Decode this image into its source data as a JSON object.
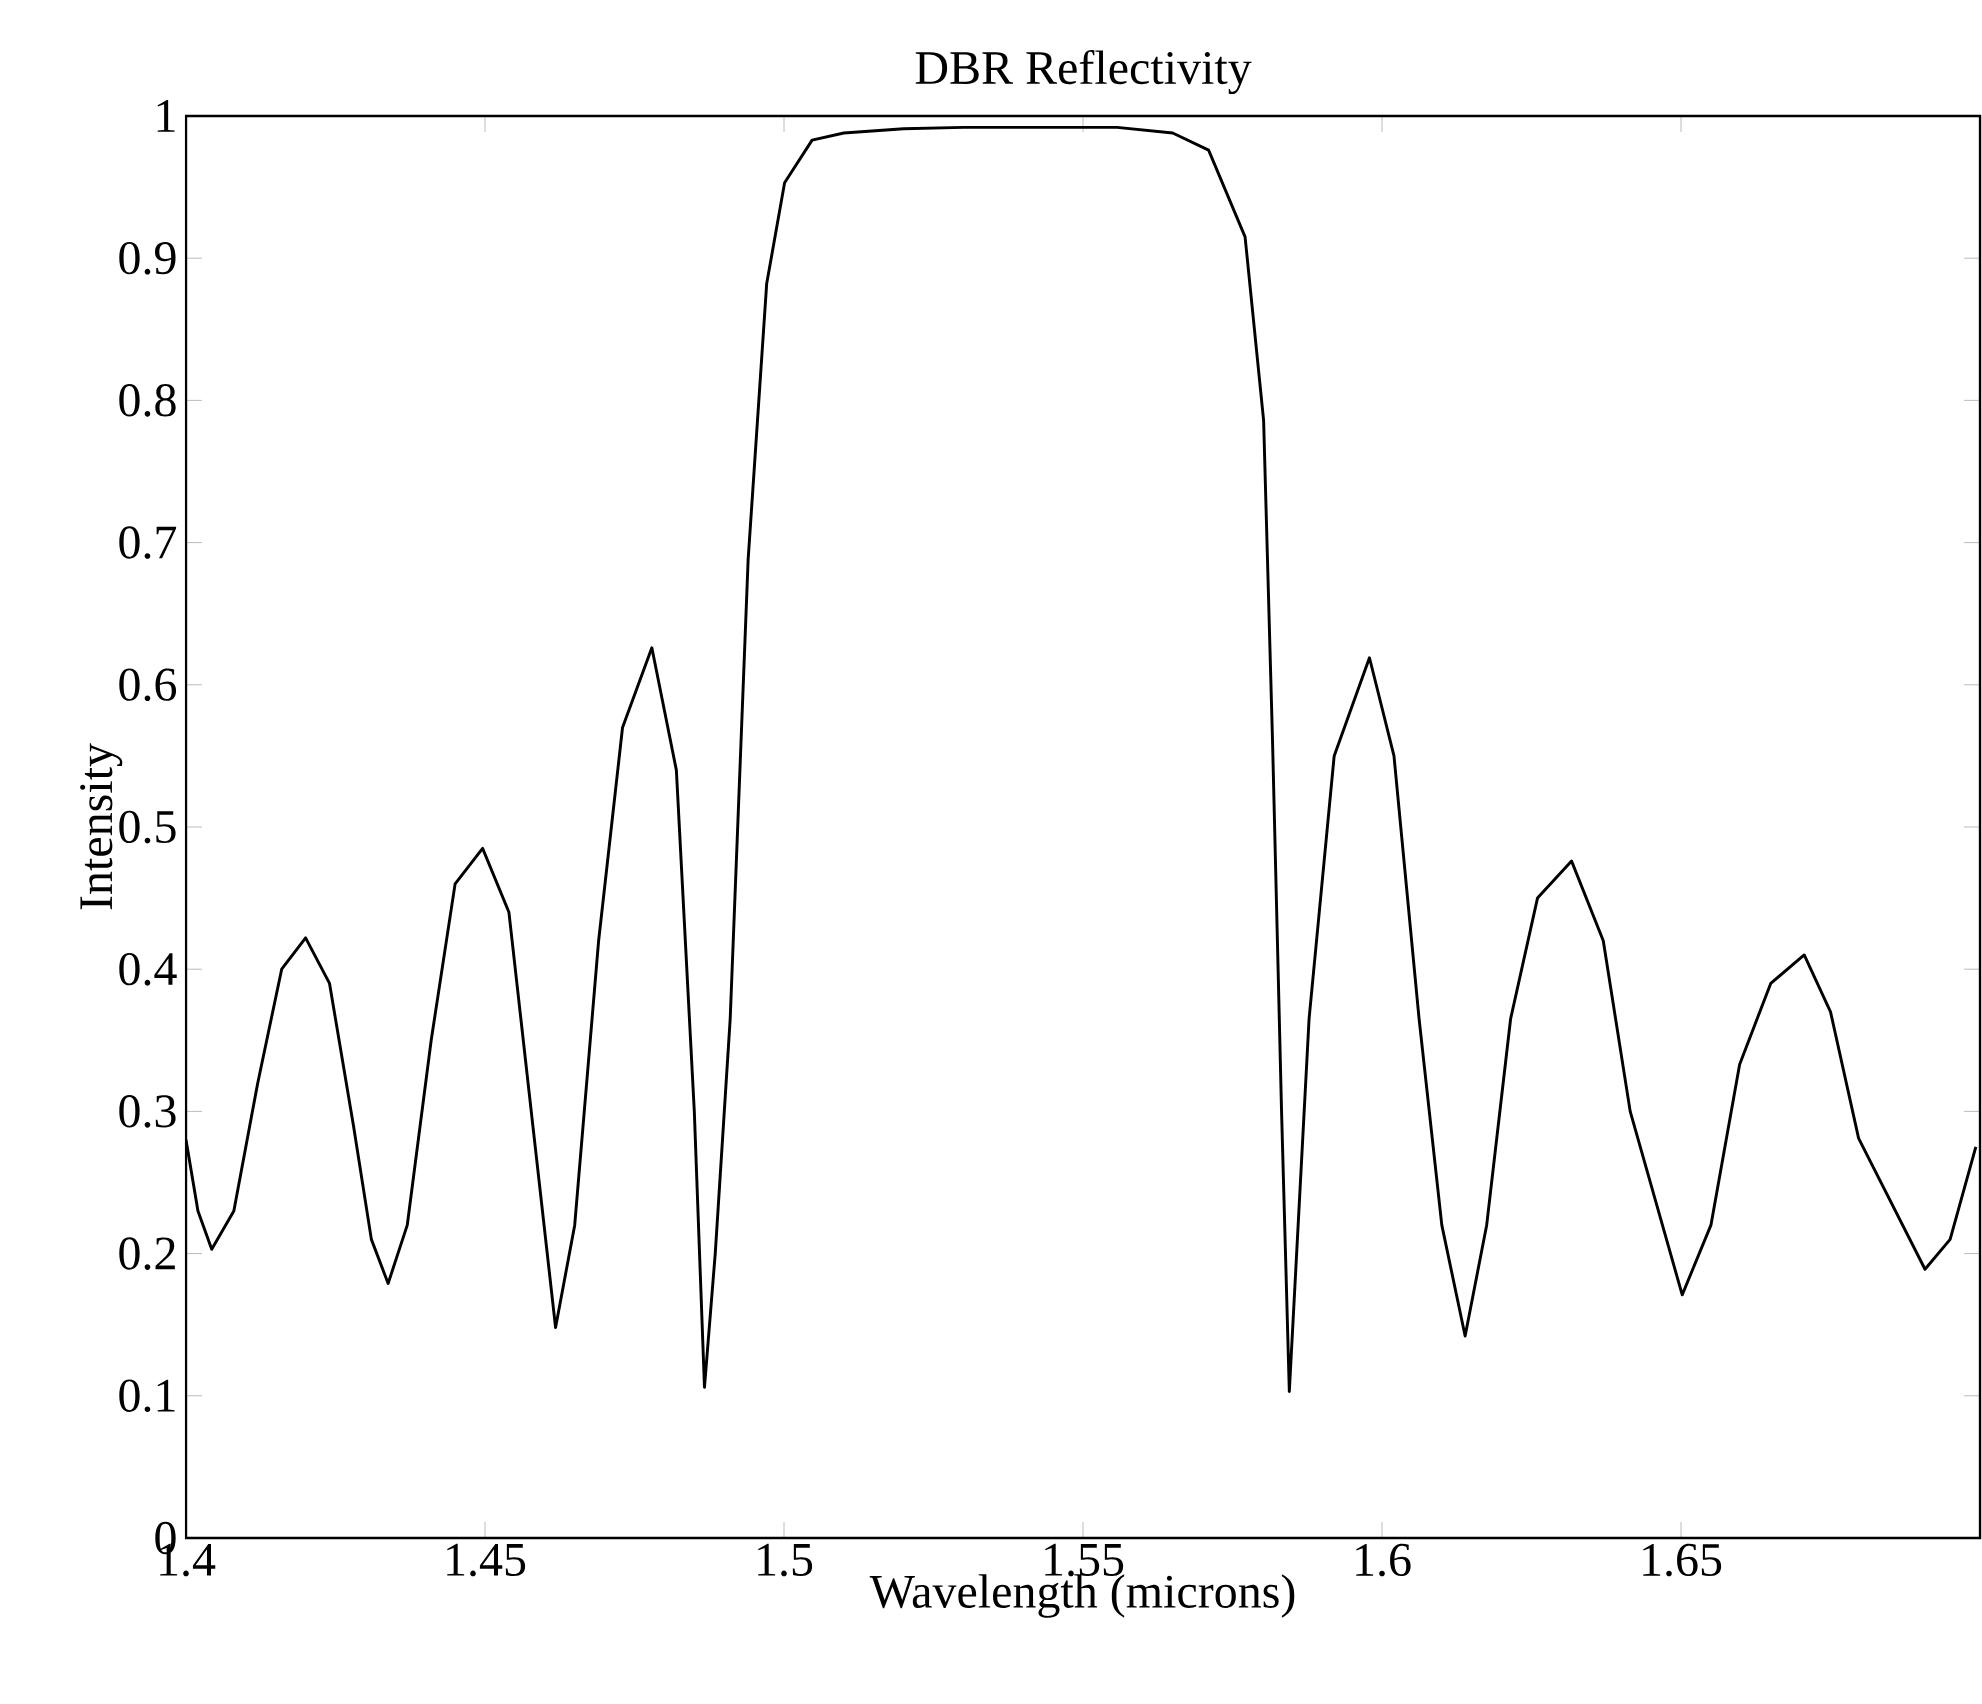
{
  "chart_data": {
    "type": "line",
    "title": "DBR Reflectivity",
    "xlabel": "Wavelength (microns)",
    "ylabel": "Intensity",
    "xlim": [
      1.4,
      1.7
    ],
    "ylim": [
      0,
      1
    ],
    "xticks": [
      1.4,
      1.45,
      1.5,
      1.55,
      1.6,
      1.65
    ],
    "yticks": [
      0,
      0.1,
      0.2,
      0.3,
      0.4,
      0.5,
      0.6,
      0.7,
      0.8,
      0.9,
      1
    ],
    "color": "#000000",
    "x": [
      1.4,
      1.402,
      1.4043,
      1.408,
      1.412,
      1.416,
      1.42,
      1.424,
      1.428,
      1.431,
      1.4338,
      1.437,
      1.441,
      1.445,
      1.4496,
      1.454,
      1.458,
      1.4618,
      1.465,
      1.469,
      1.473,
      1.4779,
      1.482,
      1.485,
      1.4867,
      1.4885,
      1.491,
      1.494,
      1.4971,
      1.5001,
      1.5047,
      1.51,
      1.52,
      1.53,
      1.545,
      1.5557,
      1.565,
      1.571,
      1.5771,
      1.5802,
      1.5817,
      1.5832,
      1.5845,
      1.5878,
      1.592,
      1.5979,
      1.602,
      1.6062,
      1.61,
      1.6139,
      1.6175,
      1.6215,
      1.626,
      1.6317,
      1.637,
      1.6415,
      1.6502,
      1.655,
      1.6598,
      1.665,
      1.6706,
      1.675,
      1.6797,
      1.6908,
      1.695,
      1.6993
    ],
    "values": [
      0.28,
      0.23,
      0.203,
      0.23,
      0.32,
      0.4,
      0.422,
      0.39,
      0.29,
      0.21,
      0.179,
      0.22,
      0.35,
      0.46,
      0.485,
      0.44,
      0.29,
      0.148,
      0.22,
      0.42,
      0.57,
      0.626,
      0.54,
      0.3,
      0.106,
      0.2,
      0.365,
      0.688,
      0.882,
      0.953,
      0.983,
      0.988,
      0.991,
      0.992,
      0.992,
      0.992,
      0.988,
      0.976,
      0.915,
      0.786,
      0.559,
      0.3,
      0.103,
      0.365,
      0.55,
      0.619,
      0.55,
      0.365,
      0.22,
      0.142,
      0.22,
      0.365,
      0.45,
      0.476,
      0.42,
      0.3,
      0.171,
      0.22,
      0.333,
      0.39,
      0.41,
      0.37,
      0.281,
      0.189,
      0.21,
      0.275
    ]
  }
}
